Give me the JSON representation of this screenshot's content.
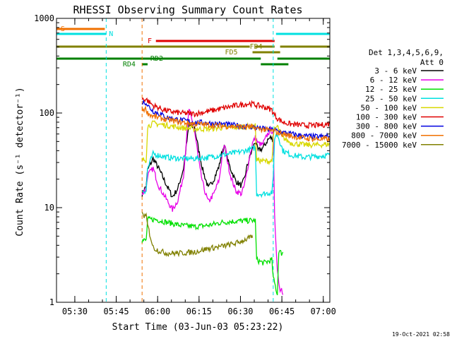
{
  "chart_data": {
    "type": "line",
    "title": "RHESSI Observing Summary Count Rates",
    "xlabel": "Start Time (03-Jun-03 05:23:22)",
    "ylabel": "Count Rate (s⁻¹ detector⁻¹)",
    "yscale": "log",
    "ylim": [
      1,
      1000
    ],
    "xlim_minutes_after_0523": [
      0,
      99
    ],
    "x_ticks": [
      "05:30",
      "05:45",
      "06:00",
      "06:15",
      "06:30",
      "06:45",
      "07:00"
    ],
    "y_ticks": [
      "1",
      "10",
      "100",
      "1000"
    ],
    "footer": "19-Oct-2021 02:58",
    "legend": {
      "header": [
        "Det 1,3,4,5,6,9,",
        "Att 0"
      ],
      "placement": "right",
      "entries": [
        {
          "label": "3 - 6 keV",
          "color": "#000000"
        },
        {
          "label": "6 - 12 keV",
          "color": "#e800e8"
        },
        {
          "label": "12 - 25 keV",
          "color": "#00e000"
        },
        {
          "label": "25 - 50 keV",
          "color": "#00e0e0"
        },
        {
          "label": "50 - 100 keV",
          "color": "#d8d800"
        },
        {
          "label": "100 - 300 keV",
          "color": "#e00000"
        },
        {
          "label": "300 - 800 keV",
          "color": "#0000e0"
        },
        {
          "label": "800 - 7000 keV",
          "color": "#f07000"
        },
        {
          "label": "7000 - 15000 keV",
          "color": "#808000"
        }
      ]
    },
    "flag_labels": [
      "S",
      "N",
      "F",
      "FD4",
      "FD5",
      "RD2",
      "RD4"
    ],
    "flags": [
      {
        "label": "S",
        "color": "#f07000",
        "segments": [
          [
            0,
            17.5
          ]
        ]
      },
      {
        "label": "N",
        "color": "#00e0e0",
        "segments": [
          [
            0,
            18
          ],
          [
            79.5,
            99
          ]
        ]
      },
      {
        "label": "F",
        "color": "#e00000",
        "segments": [
          [
            36,
            79
          ]
        ]
      },
      {
        "label": "FD4",
        "color": "#808000",
        "segments": [
          [
            0,
            70
          ],
          [
            72,
            79
          ],
          [
            81,
            99
          ]
        ]
      },
      {
        "label": "FD5",
        "color": "#808000",
        "segments": [
          [
            71,
            81
          ]
        ]
      },
      {
        "label": "RD2",
        "color": "#008000",
        "segments": [
          [
            0,
            74
          ],
          [
            80,
            99
          ]
        ]
      },
      {
        "label": "RD4",
        "color": "#008000",
        "segments": [
          [
            31,
            33
          ],
          [
            74,
            84
          ]
        ]
      }
    ],
    "vertical_markers": [
      {
        "t": 18,
        "color": "#00e0e0"
      },
      {
        "t": 31,
        "color": "#f07000"
      },
      {
        "t": 78.5,
        "color": "#00e0e0"
      },
      {
        "t": 99,
        "color": "#00e0e0"
      }
    ],
    "series": [
      {
        "name": "3 - 6 keV",
        "color": "#000000",
        "t": [
          31,
          32.5,
          33,
          35,
          37,
          40,
          42,
          44,
          46,
          47,
          48,
          50,
          52,
          53,
          54,
          55,
          57,
          59,
          60,
          61,
          62,
          63,
          64,
          65,
          67,
          68,
          69,
          70,
          71,
          72,
          73,
          74.5,
          75.5,
          76.5,
          77.5,
          78.5
        ],
        "y": [
          14,
          17,
          25,
          33,
          26,
          17,
          13,
          16,
          26,
          44,
          75,
          70,
          34,
          25,
          20,
          16,
          20,
          28,
          40,
          44,
          32,
          26,
          22,
          19,
          17,
          20,
          27,
          34,
          42,
          50,
          40,
          42,
          46,
          52,
          55,
          52
        ]
      },
      {
        "name": "6 - 12 keV",
        "color": "#e800e8",
        "t": [
          31,
          32.5,
          33,
          35,
          37,
          40,
          42,
          44,
          46,
          47,
          48,
          50,
          52,
          53,
          54,
          55,
          57,
          59,
          60,
          61,
          62,
          63,
          64,
          65,
          67,
          68,
          69,
          70,
          71,
          72,
          73,
          74.5,
          75.5,
          76.5,
          77.5,
          78.5,
          79,
          80,
          81,
          81.5,
          82
        ],
        "y": [
          14,
          16,
          22,
          26,
          17,
          12,
          9.5,
          12,
          22,
          50,
          110,
          65,
          25,
          18,
          14,
          11.5,
          14,
          20,
          36,
          46,
          30,
          22,
          18,
          15,
          14,
          17,
          24,
          35,
          48,
          55,
          48,
          46,
          52,
          60,
          66,
          63,
          8,
          2.2,
          1.3,
          1.5,
          1.2
        ]
      },
      {
        "name": "12 - 25 keV",
        "color": "#00e000",
        "t": [
          31,
          32.5,
          33,
          36,
          40,
          45,
          50,
          55,
          60,
          65,
          70,
          72,
          72.5,
          75,
          78,
          78.5,
          79,
          80,
          80.5,
          81.5,
          82
        ],
        "y": [
          4.5,
          4.5,
          7.5,
          7.5,
          7,
          6.5,
          6.3,
          6.5,
          7,
          7.2,
          7.3,
          7.3,
          2.8,
          2.6,
          2.8,
          1.8,
          1.6,
          1.2,
          3.5,
          3.3,
          3.4
        ]
      },
      {
        "name": "25 - 50 keV",
        "color": "#00e0e0",
        "t": [
          31,
          32.5,
          33,
          35,
          40,
          45,
          50,
          55,
          60,
          65,
          70,
          72,
          72.5,
          75,
          78,
          78.5,
          79,
          80,
          82,
          85,
          90,
          95,
          99
        ],
        "y": [
          15,
          15,
          26,
          37,
          34,
          33,
          33,
          34,
          36,
          38,
          41,
          43,
          14,
          14,
          14.5,
          20,
          55,
          60,
          40,
          36,
          34,
          35,
          36
        ]
      },
      {
        "name": "50 - 100 keV",
        "color": "#d8d800",
        "t": [
          31,
          32.5,
          33,
          35,
          40,
          45,
          50,
          55,
          60,
          65,
          70,
          72,
          72.5,
          75,
          78,
          78.5,
          79,
          80,
          82,
          85,
          90,
          95,
          99
        ],
        "y": [
          32,
          32,
          72,
          78,
          74,
          70,
          68,
          68,
          70,
          71,
          72,
          73,
          32,
          31,
          31,
          52,
          68,
          72,
          55,
          48,
          46,
          46,
          47
        ]
      },
      {
        "name": "100 - 300 keV",
        "color": "#e00000",
        "t": [
          31,
          32.5,
          33,
          35,
          40,
          45,
          50,
          55,
          60,
          65,
          70,
          72,
          75,
          78,
          79,
          80,
          82,
          85,
          90,
          95,
          99
        ],
        "y": [
          140,
          140,
          135,
          120,
          105,
          100,
          98,
          104,
          112,
          120,
          126,
          122,
          116,
          108,
          95,
          88,
          80,
          76,
          74,
          74,
          77
        ]
      },
      {
        "name": "300 - 800 keV",
        "color": "#0000e0",
        "t": [
          31,
          32.5,
          33,
          35,
          40,
          45,
          50,
          55,
          60,
          65,
          70,
          72,
          75,
          78,
          79,
          80,
          85,
          90,
          95,
          99
        ],
        "y": [
          130,
          130,
          120,
          105,
          90,
          84,
          80,
          78,
          76,
          74,
          72,
          70,
          68,
          66,
          66,
          64,
          60,
          57,
          56,
          57
        ]
      },
      {
        "name": "800 - 7000 keV",
        "color": "#f07000",
        "t": [
          31,
          32.5,
          33,
          35,
          40,
          45,
          50,
          55,
          60,
          65,
          70,
          72,
          75,
          78,
          79,
          80,
          85,
          90,
          95,
          99
        ],
        "y": [
          110,
          110,
          100,
          92,
          85,
          80,
          77,
          75,
          73,
          72,
          71,
          69,
          67,
          65,
          64,
          62,
          57,
          54,
          53,
          53
        ]
      },
      {
        "name": "7000 - 15000 keV",
        "color": "#808000",
        "t": [
          31,
          32.5,
          33,
          35,
          37,
          40,
          45,
          50,
          55,
          60,
          65,
          70,
          71
        ],
        "y": [
          8.5,
          8,
          6.5,
          3.8,
          3.5,
          3.3,
          3.3,
          3.4,
          3.7,
          3.9,
          4.2,
          4.8,
          4.8
        ]
      }
    ]
  }
}
